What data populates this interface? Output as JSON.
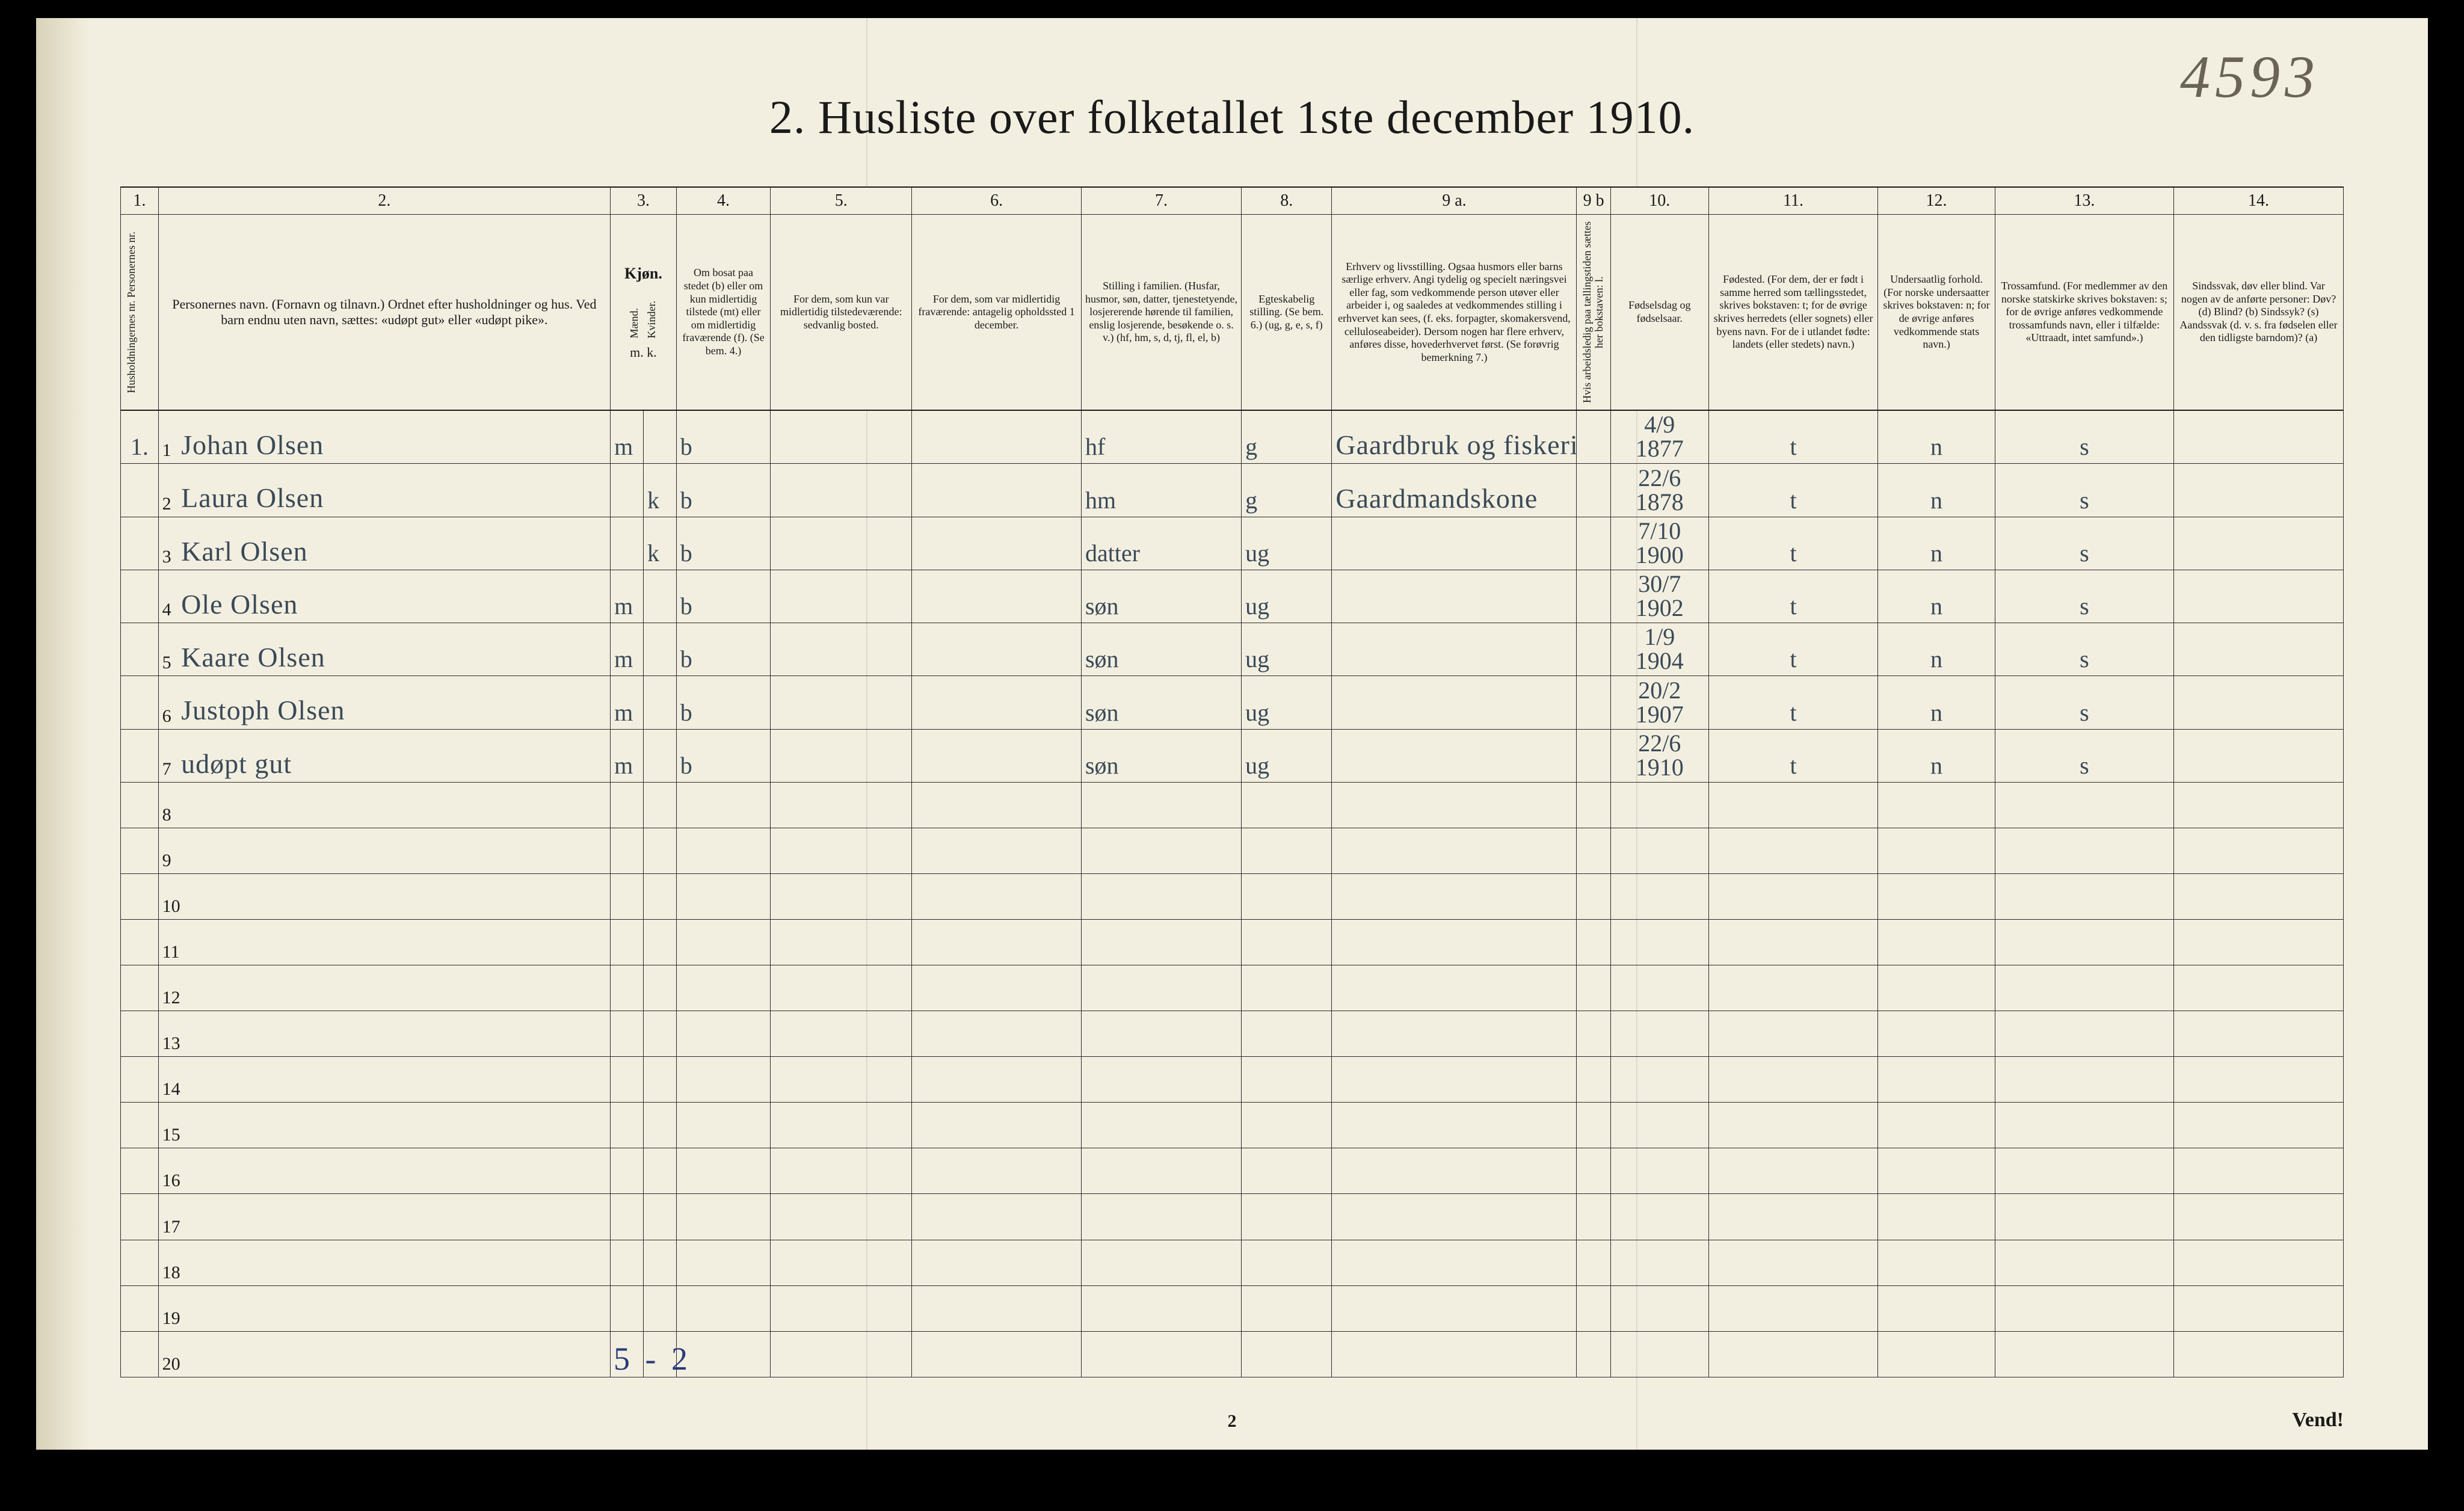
{
  "page_number_handwritten": "4593",
  "title": "2.  Husliste over folketallet 1ste december 1910.",
  "bottom_page_number": "2",
  "vend_label": "Vend!",
  "blue_annotation": "5 - 2",
  "col_numbers": [
    "1.",
    "2.",
    "3.",
    "4.",
    "5.",
    "6.",
    "7.",
    "8.",
    "9 a.",
    "9 b",
    "10.",
    "11.",
    "12.",
    "13.",
    "14."
  ],
  "headers": {
    "c1": "Husholdningernes nr.\nPersonernes nr.",
    "c2": "Personernes navn.\n(Fornavn og tilnavn.)\nOrdnet efter husholdninger og hus.\nVed barn endnu uten navn, sættes: «udøpt gut» eller «udøpt pike».",
    "c3_title": "Kjøn.",
    "c3_m": "Mænd.",
    "c3_k": "Kvinder.",
    "c3_mk": "m.  k.",
    "c4": "Om bosat paa stedet (b) eller om kun midlertidig tilstede (mt) eller om midlertidig fraværende (f). (Se bem. 4.)",
    "c5": "For dem, som kun var midlertidig tilstedeværende:\nsedvanlig bosted.",
    "c6": "For dem, som var midlertidig fraværende:\nantagelig opholdssted 1 december.",
    "c7": "Stilling i familien.\n(Husfar, husmor, søn, datter, tjenestetyende, losjererende hørende til familien, enslig losjerende, besøkende o. s. v.)\n(hf, hm, s, d, tj, fl, el, b)",
    "c8": "Egteskabelig stilling.\n(Se bem. 6.)\n(ug, g, e, s, f)",
    "c9a": "Erhverv og livsstilling.\nOgsaa husmors eller barns særlige erhverv. Angi tydelig og specielt næringsvei eller fag, som vedkommende person utøver eller arbeider i, og saaledes at vedkommendes stilling i erhvervet kan sees, (f. eks. forpagter, skomakersvend, celluloseabeider). Dersom nogen har flere erhverv, anføres disse, hovederhvervet først.\n(Se forøvrig bemerkning 7.)",
    "c9b": "Hvis arbeidsledig paa tællingstiden sættes her bokstaven: l.",
    "c10": "Fødselsdag og fødselsaar.",
    "c11": "Fødested.\n(For dem, der er født i samme herred som tællingsstedet, skrives bokstaven: t; for de øvrige skrives herredets (eller sognets) eller byens navn. For de i utlandet fødte: landets (eller stedets) navn.)",
    "c12": "Undersaatlig forhold.\n(For norske undersaatter skrives bokstaven: n; for de øvrige anføres vedkommende stats navn.)",
    "c13": "Trossamfund.\n(For medlemmer av den norske statskirke skrives bokstaven: s; for de øvrige anføres vedkommende trossamfunds navn, eller i tilfælde: «Uttraadt, intet samfund».)",
    "c14": "Sindssvak, døv eller blind.\nVar nogen av de anførte personer:\nDøv? (d)\nBlind? (b)\nSindssyk? (s)\nAandssvak (d. v. s. fra fødselen eller den tidligste barndom)? (a)"
  },
  "households": [
    {
      "hh": "1.",
      "rows": [
        {
          "n": "1",
          "name": "Johan Olsen",
          "sex": "m",
          "bosat": "b",
          "stilling": "hf",
          "egt": "g",
          "erhverv": "Gaardbruk og fiskeri",
          "fdato": "4/9 1877",
          "fsted": "t",
          "und": "n",
          "tro": "s"
        },
        {
          "n": "2",
          "name": "Laura Olsen",
          "sex": "k",
          "bosat": "b",
          "stilling": "hm",
          "egt": "g",
          "erhverv": "Gaardmandskone",
          "fdato": "22/6 1878",
          "fsted": "t",
          "und": "n",
          "tro": "s"
        },
        {
          "n": "3",
          "name": "Karl Olsen",
          "sex": "k",
          "bosat": "b",
          "stilling": "datter",
          "egt": "ug",
          "erhverv": "",
          "fdato": "7/10 1900",
          "fsted": "t",
          "und": "n",
          "tro": "s"
        },
        {
          "n": "4",
          "name": "Ole Olsen",
          "sex": "m",
          "bosat": "b",
          "stilling": "søn",
          "egt": "ug",
          "erhverv": "",
          "fdato": "30/7 1902",
          "fsted": "t",
          "und": "n",
          "tro": "s"
        },
        {
          "n": "5",
          "name": "Kaare Olsen",
          "sex": "m",
          "bosat": "b",
          "stilling": "søn",
          "egt": "ug",
          "erhverv": "",
          "fdato": "1/9 1904",
          "fsted": "t",
          "und": "n",
          "tro": "s"
        },
        {
          "n": "6",
          "name": "Justoph Olsen",
          "sex": "m",
          "bosat": "b",
          "stilling": "søn",
          "egt": "ug",
          "erhverv": "",
          "fdato": "20/2 1907",
          "fsted": "t",
          "und": "n",
          "tro": "s"
        },
        {
          "n": "7",
          "name": "udøpt gut",
          "sex": "m",
          "bosat": "b",
          "stilling": "søn",
          "egt": "ug",
          "erhverv": "",
          "fdato": "22/6 1910",
          "fsted": "t",
          "und": "n",
          "tro": "s"
        }
      ]
    }
  ],
  "blank_rows": [
    "8",
    "9",
    "10",
    "11",
    "12",
    "13",
    "14",
    "15",
    "16",
    "17",
    "18",
    "19",
    "20"
  ],
  "columns": {
    "widths_pct": [
      2.0,
      24.0,
      3.5,
      5.0,
      7.5,
      9.0,
      8.5,
      4.8,
      13.0,
      1.8,
      5.2,
      9.0,
      6.2,
      9.5,
      9.0
    ]
  },
  "colors": {
    "paper": "#f3efe0",
    "ink": "#1a1a1a",
    "handwriting": "#3a4a58",
    "blue_ink": "#2a3a7a"
  }
}
